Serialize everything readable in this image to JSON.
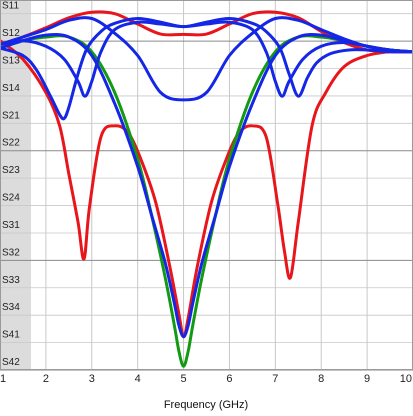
{
  "chart_data": {
    "type": "line",
    "title": "",
    "xlabel": "Frequency (GHz)",
    "ylabel": "",
    "xlim": [
      1,
      10
    ],
    "ylim": [
      -100,
      0
    ],
    "x_ticks": [
      1,
      2,
      3,
      4,
      5,
      6,
      7,
      8,
      9,
      10
    ],
    "y_tick_labels": [
      "S11",
      "S12",
      "S13",
      "S14",
      "S21",
      "S22",
      "S23",
      "S24",
      "S31",
      "S32",
      "S33",
      "S34",
      "S41",
      "S42"
    ],
    "grid": true,
    "colors": {
      "red": "#e8151b",
      "green": "#129a12",
      "blue": "#1426e6",
      "band": "#dcdcdc",
      "grid": "#c8c8c8",
      "grid_major": "#8a8a8a"
    },
    "series": [
      {
        "name": "S11",
        "color": "#e8151b",
        "x": [
          1.0,
          1.5,
          2.0,
          2.3,
          2.5,
          2.7,
          2.83,
          2.95,
          3.2,
          3.5,
          3.8,
          4.1,
          4.4,
          4.7,
          4.9,
          5.0,
          5.1,
          5.3,
          5.6,
          5.9,
          6.2,
          6.5,
          6.8,
          7.05,
          7.2,
          7.33,
          7.5,
          7.8,
          8.1,
          8.5,
          9.0,
          9.5,
          10.0
        ],
        "y": [
          -11,
          -16,
          -25,
          -34,
          -47,
          -60,
          -70,
          -56,
          -37,
          -34,
          -36,
          -44,
          -55,
          -72,
          -85,
          -91,
          -86,
          -72,
          -55,
          -44,
          -36,
          -34,
          -37,
          -55,
          -68,
          -75,
          -60,
          -34,
          -25,
          -18,
          -15,
          -14,
          -14
        ]
      },
      {
        "name": "S12",
        "color": "#e8151b",
        "x": [
          1.0,
          1.5,
          2.0,
          2.5,
          3.0,
          3.5,
          4.0,
          4.5,
          5.0,
          5.5,
          6.0,
          6.5,
          7.0,
          7.5,
          8.0,
          8.5,
          9.0,
          9.5,
          10.0
        ],
        "y": [
          -12,
          -10,
          -7.5,
          -4.8,
          -3.3,
          -3.7,
          -6.5,
          -9.2,
          -9.3,
          -9.2,
          -6.5,
          -3.7,
          -3.3,
          -4.8,
          -8.5,
          -11.5,
          -13.5,
          -14,
          -14
        ]
      },
      {
        "name": "S21",
        "color": "#129a12",
        "x": [
          1.0,
          1.5,
          2.0,
          2.5,
          3.0,
          3.5,
          4.0,
          4.3,
          4.6,
          4.8,
          4.9,
          5.0,
          5.1,
          5.2,
          5.4,
          5.7,
          6.0,
          6.5,
          7.0,
          7.5,
          8.0,
          8.5,
          9.0,
          9.5,
          10.0
        ],
        "y": [
          -13,
          -11,
          -10,
          -10,
          -14,
          -25,
          -43,
          -58,
          -75,
          -88,
          -95,
          -99,
          -95,
          -88,
          -75,
          -58,
          -43,
          -25,
          -14,
          -10,
          -10,
          -11,
          -12.5,
          -13.5,
          -14
        ]
      },
      {
        "name": "S31",
        "color": "#1426e6",
        "x": [
          1.0,
          1.5,
          2.0,
          2.5,
          3.0,
          3.5,
          4.0,
          4.3,
          4.6,
          4.8,
          4.9,
          5.0,
          5.1,
          5.2,
          5.4,
          5.7,
          6.0,
          6.5,
          7.0,
          7.5,
          8.0,
          8.5,
          9.0,
          9.5,
          10.0
        ],
        "y": [
          -13,
          -11,
          -9.5,
          -10,
          -15,
          -28,
          -45,
          -58,
          -71,
          -82,
          -88,
          -91,
          -88,
          -82,
          -71,
          -58,
          -45,
          -28,
          -15,
          -10,
          -9.5,
          -11,
          -12.5,
          -13.5,
          -14
        ]
      },
      {
        "name": "S32",
        "color": "#1426e6",
        "x": [
          1.0,
          1.5,
          2.0,
          2.5,
          3.0,
          3.5,
          4.0,
          4.5,
          5.0,
          5.5,
          6.0,
          6.5,
          7.0,
          7.5,
          8.0,
          8.5,
          9.0,
          9.5,
          10.0
        ],
        "y": [
          -12,
          -10,
          -8,
          -5.5,
          -5,
          -9,
          -15,
          -25,
          -27,
          -25,
          -15,
          -9,
          -5,
          -5.5,
          -8,
          -10.5,
          -12.5,
          -13.5,
          -14
        ]
      },
      {
        "name": "S41",
        "color": "#1426e6",
        "x": [
          1.0,
          1.5,
          1.8,
          2.1,
          2.3,
          2.4,
          2.5,
          2.7,
          2.9,
          3.2,
          3.5,
          4.0,
          4.5,
          5.0,
          5.5,
          6.0,
          6.5,
          6.8,
          7.1,
          7.3,
          7.5,
          7.7,
          7.9,
          8.2,
          8.6,
          9.0,
          9.5,
          10.0
        ],
        "y": [
          -13,
          -15,
          -19,
          -26,
          -31,
          -32,
          -29,
          -20,
          -13,
          -8.5,
          -6.3,
          -5,
          -6,
          -7.2,
          -6,
          -5,
          -6.3,
          -8.5,
          -13,
          -20,
          -26,
          -21,
          -17,
          -14.5,
          -13.5,
          -13.5,
          -14,
          -14
        ]
      },
      {
        "name": "S42",
        "color": "#1426e6",
        "x": [
          1.0,
          1.5,
          2.0,
          2.4,
          2.7,
          2.85,
          3.0,
          3.2,
          3.5,
          4.0,
          4.5,
          5.0,
          5.5,
          6.0,
          6.5,
          6.8,
          7.0,
          7.15,
          7.3,
          7.6,
          8.0,
          8.5,
          9.0,
          9.5,
          10.0
        ],
        "y": [
          -12,
          -11,
          -12.5,
          -16,
          -22,
          -26,
          -22,
          -14,
          -8,
          -6,
          -6.5,
          -7.2,
          -6.5,
          -6,
          -8,
          -14,
          -22,
          -26,
          -22,
          -16,
          -12.5,
          -11.5,
          -12.5,
          -13.5,
          -14
        ]
      }
    ]
  }
}
